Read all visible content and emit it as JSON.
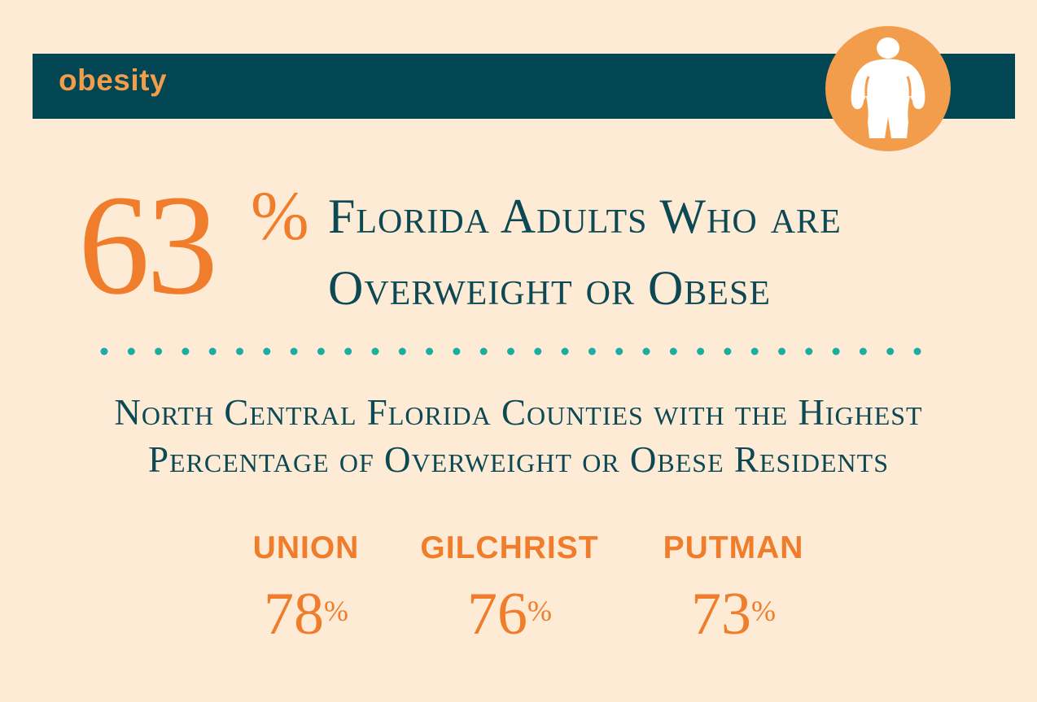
{
  "banner": {
    "label": "obesity",
    "icon": "person-silhouette-icon"
  },
  "headline_stat": {
    "value": "63",
    "unit": "%",
    "line1": "Florida Adults Who are",
    "line2": "Overweight or Obese"
  },
  "subheading": {
    "line1": "North Central Florida Counties with the Highest",
    "line2": "Percentage of Overweight or Obese Residents"
  },
  "counties": [
    {
      "name": "UNION",
      "value": "78",
      "unit": "%"
    },
    {
      "name": "GILCHRIST",
      "value": "76",
      "unit": "%"
    },
    {
      "name": "PUTMAN",
      "value": "73",
      "unit": "%"
    }
  ],
  "colors": {
    "background": "#fdebd5",
    "banner": "#024653",
    "accent_orange": "#ef7d2b",
    "icon_orange": "#f29d4b",
    "teal_text": "#0c4954",
    "dots": "#1aada0"
  }
}
